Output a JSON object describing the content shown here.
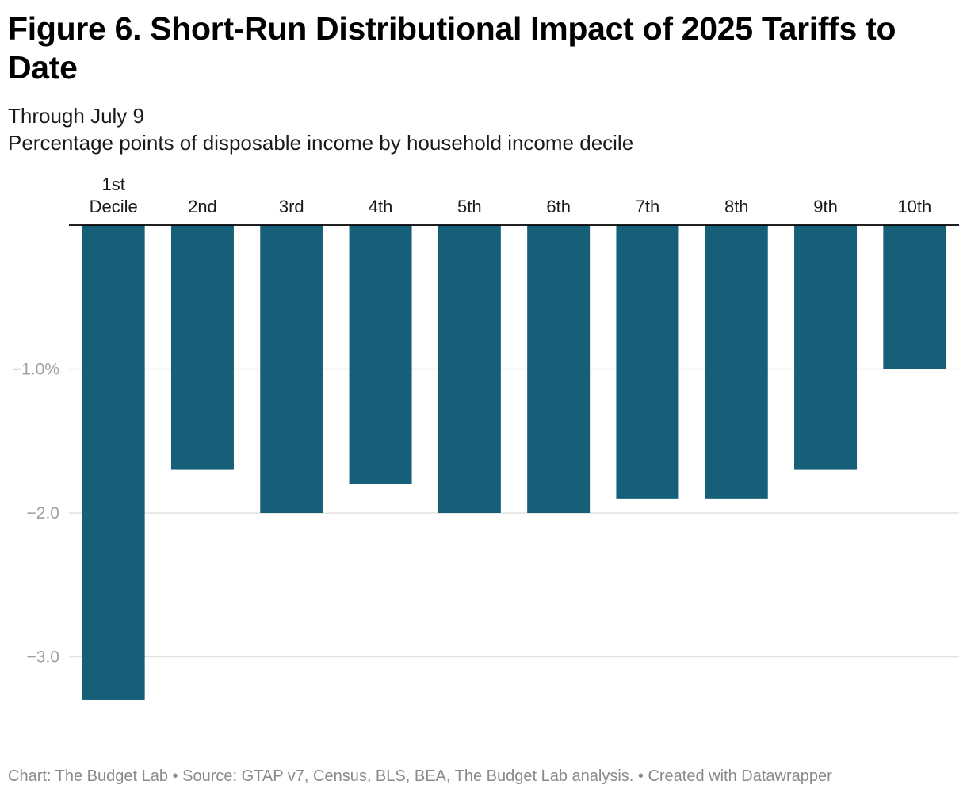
{
  "title": "Figure 6. Short-Run Distributional Impact of 2025 Tariffs to Date",
  "subtitles": [
    "Through July 9",
    "Percentage points of disposable income by household income decile"
  ],
  "footer": {
    "chart_credit": "Chart: The Budget Lab",
    "source": "Source: GTAP v7, Census, BLS, BEA, The Budget Lab analysis.",
    "created_with": "Created with Datawrapper",
    "separator": " • "
  },
  "colors": {
    "bar": "#155f79",
    "grid": "#e2e2e2",
    "zero_line": "#000000",
    "tick_label": "#a0a0a0",
    "category_label": "#1a1a1a",
    "footer_text": "#8a8a8a"
  },
  "chart_data": {
    "type": "bar",
    "orientation": "vertical",
    "categories": [
      [
        "1st",
        "Decile"
      ],
      [
        "2nd"
      ],
      [
        "3rd"
      ],
      [
        "4th"
      ],
      [
        "5th"
      ],
      [
        "6th"
      ],
      [
        "7th"
      ],
      [
        "8th"
      ],
      [
        "9th"
      ],
      [
        "10th"
      ]
    ],
    "values": [
      -3.3,
      -1.7,
      -2.0,
      -1.8,
      -2.0,
      -2.0,
      -1.9,
      -1.9,
      -1.7,
      -1.0
    ],
    "ylim": [
      -3.45,
      0
    ],
    "yticks": [
      -1.0,
      -2.0,
      -3.0
    ],
    "ytick_labels": [
      "−1.0%",
      "−2.0",
      "−3.0"
    ],
    "category_labels_position": "top",
    "grid": true,
    "legend": "none"
  }
}
